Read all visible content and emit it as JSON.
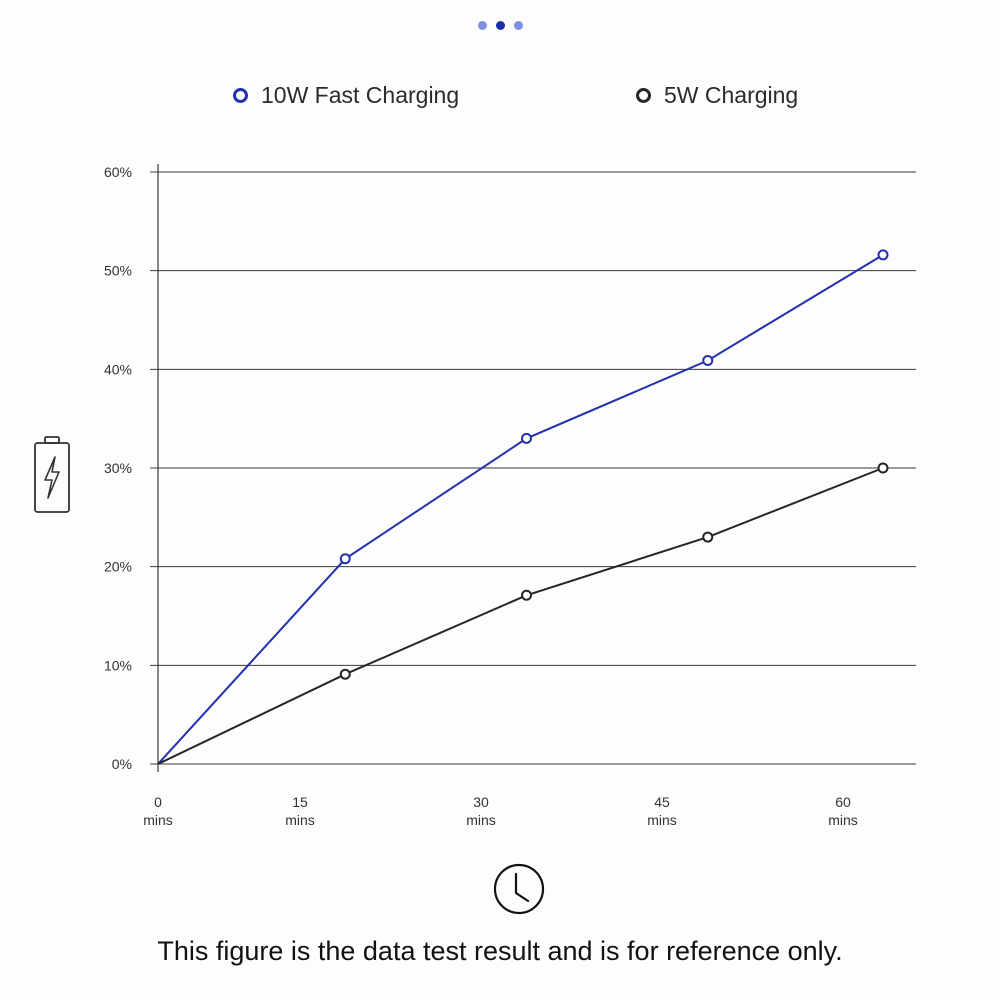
{
  "pager": {
    "count": 3,
    "active": 1
  },
  "legend": [
    {
      "label": "10W Fast Charging",
      "color": "#2231b0"
    },
    {
      "label": "5W Charging",
      "color": "#262626"
    }
  ],
  "chart_data": {
    "type": "line",
    "title": "",
    "xlabel": "",
    "ylabel": "",
    "xlim": [
      0,
      60
    ],
    "ylim": [
      0,
      60
    ],
    "x_ticks": [
      0,
      15,
      30,
      45,
      60
    ],
    "x_tick_labels": [
      {
        "value": "0",
        "unit": "mins"
      },
      {
        "value": "15",
        "unit": "mins"
      },
      {
        "value": "30",
        "unit": "mins"
      },
      {
        "value": "45",
        "unit": "mins"
      },
      {
        "value": "60",
        "unit": "mins"
      }
    ],
    "y_ticks": [
      0,
      10,
      20,
      30,
      40,
      50,
      60
    ],
    "y_tick_labels": [
      "0%",
      "10%",
      "20%",
      "30%",
      "40%",
      "50%",
      "60%"
    ],
    "grid": true,
    "legend_position": "top",
    "series": [
      {
        "name": "10W Fast Charging",
        "color": "#2231b0",
        "points": [
          [
            0,
            0
          ],
          [
            15,
            20.8
          ],
          [
            30,
            33
          ],
          [
            45,
            40.9
          ],
          [
            60,
            51.6
          ]
        ]
      },
      {
        "name": "5W Charging",
        "color": "#262626",
        "points": [
          [
            0,
            0
          ],
          [
            15,
            9.1
          ],
          [
            30,
            17.1
          ],
          [
            45,
            23
          ],
          [
            60,
            30
          ]
        ]
      }
    ]
  },
  "icons": {
    "battery": "battery-charging-icon",
    "clock": "clock-icon"
  },
  "footnote": "This figure is the data test result and is for reference only."
}
